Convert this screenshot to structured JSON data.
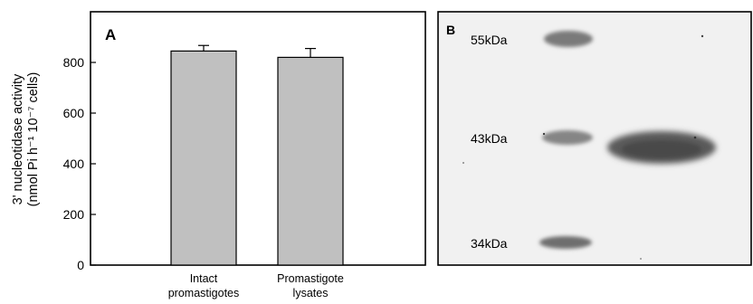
{
  "panels": {
    "a": {
      "label": "A"
    },
    "b": {
      "label": "B",
      "markers": [
        {
          "label": "55kDa"
        },
        {
          "label": "43kDa"
        },
        {
          "label": "34kDa"
        }
      ]
    }
  },
  "chart_data": {
    "type": "bar",
    "title": "",
    "xlabel": "",
    "ylabel_line1": "3' nucleotidase activity",
    "ylabel_line2": "(nmol Pi  h⁻¹ 10⁻⁷ cells)",
    "ylim": [
      0,
      1000
    ],
    "yticks": [
      0,
      200,
      400,
      600,
      800
    ],
    "grid": false,
    "categories": [
      {
        "line1": "Intact",
        "line2": "promastigotes"
      },
      {
        "line1": "Promastigote",
        "line2": "lysates"
      }
    ],
    "values": [
      845,
      820
    ],
    "errors": [
      22,
      35
    ],
    "bar_color": "#c0c0c0"
  }
}
